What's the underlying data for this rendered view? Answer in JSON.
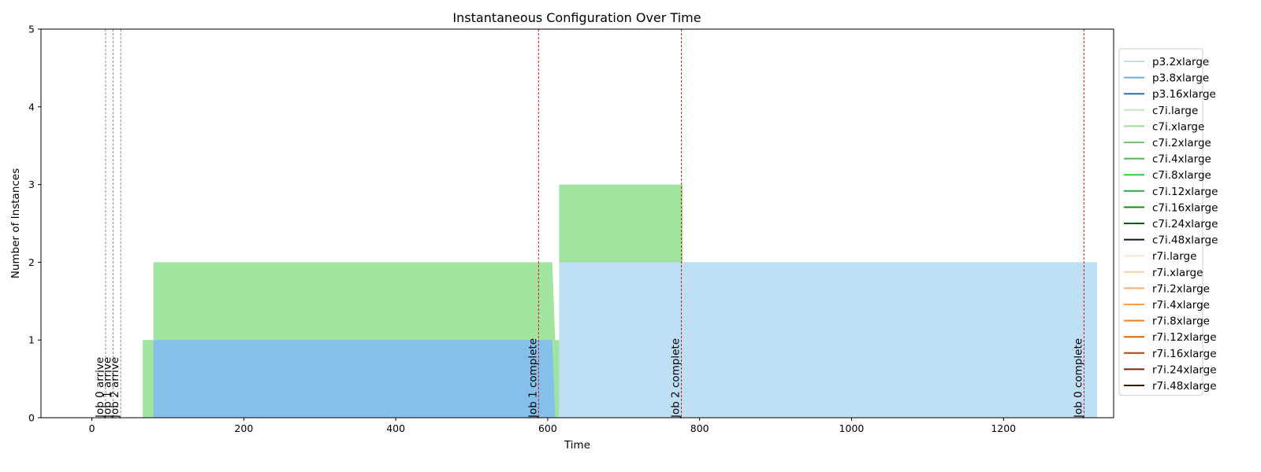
{
  "chart_data": {
    "type": "area",
    "title": "Instantaneous Configuration Over Time",
    "xlabel": "Time",
    "ylabel": "Number of Instances",
    "xlim": [
      -67,
      1345
    ],
    "ylim": [
      0,
      5
    ],
    "xticks": [
      0,
      200,
      400,
      600,
      800,
      1000,
      1200
    ],
    "yticks": [
      0,
      1,
      2,
      3,
      4,
      5
    ],
    "grid": false,
    "legend_position": "right, outside plot",
    "series": [
      {
        "name": "p3.2xlarge",
        "color": "#c6dbef",
        "fill": "#bfdff4",
        "points": [
          [
            615,
            0
          ],
          [
            615,
            2
          ],
          [
            1323,
            2
          ],
          [
            1323,
            0
          ]
        ]
      },
      {
        "name": "p3.8xlarge",
        "color": "#6baed6",
        "fill": "#85c0ea",
        "points": [
          [
            81,
            0
          ],
          [
            81,
            1
          ],
          [
            606,
            1
          ],
          [
            610,
            0
          ]
        ]
      },
      {
        "name": "p3.16xlarge",
        "color": "#2171b5",
        "points": []
      },
      {
        "name": "c7i.large",
        "color": "#c7e9c0",
        "points": []
      },
      {
        "name": "c7i.xlarge",
        "color": "#a1d99b",
        "fill": "#a0e4a0",
        "points": [
          [
            67,
            0
          ],
          [
            67,
            1
          ],
          [
            81,
            1
          ],
          [
            81,
            2
          ],
          [
            606,
            2
          ],
          [
            610,
            1
          ],
          [
            615,
            1
          ],
          [
            615,
            3
          ],
          [
            778,
            3
          ],
          [
            778,
            2
          ],
          [
            1323,
            2
          ],
          [
            1323,
            0
          ]
        ]
      },
      {
        "name": "c7i.2xlarge",
        "color": "#74c476",
        "points": []
      },
      {
        "name": "c7i.4xlarge",
        "color": "#4cbb4c",
        "points": []
      },
      {
        "name": "c7i.8xlarge",
        "color": "#2ecc40",
        "points": []
      },
      {
        "name": "c7i.12xlarge",
        "color": "#31a354",
        "points": []
      },
      {
        "name": "c7i.16xlarge",
        "color": "#1a8a1a",
        "points": []
      },
      {
        "name": "c7i.24xlarge",
        "color": "#0b5a0b",
        "points": []
      },
      {
        "name": "c7i.48xlarge",
        "color": "#111111",
        "points": []
      },
      {
        "name": "r7i.large",
        "color": "#fee6ce",
        "points": []
      },
      {
        "name": "r7i.xlarge",
        "color": "#fdd0a2",
        "points": []
      },
      {
        "name": "r7i.2xlarge",
        "color": "#fdae6b",
        "points": []
      },
      {
        "name": "r7i.4xlarge",
        "color": "#fd9b45",
        "points": []
      },
      {
        "name": "r7i.8xlarge",
        "color": "#f47e1d",
        "points": []
      },
      {
        "name": "r7i.12xlarge",
        "color": "#d9650c",
        "points": []
      },
      {
        "name": "r7i.16xlarge",
        "color": "#a9430c",
        "points": []
      },
      {
        "name": "r7i.24xlarge",
        "color": "#7a2306",
        "points": []
      },
      {
        "name": "r7i.48xlarge",
        "color": "#3d1a03",
        "points": []
      }
    ],
    "events": [
      {
        "x": 18,
        "label": "Job 0 arrive",
        "color": "#808080"
      },
      {
        "x": 28,
        "label": "Job 1 arrive",
        "color": "#808080"
      },
      {
        "x": 38,
        "label": "Job 2 arrive",
        "color": "#808080"
      },
      {
        "x": 588,
        "label": "Job 1 complete",
        "color": "#e00000"
      },
      {
        "x": 776,
        "label": "Job 2 complete",
        "color": "#e00000"
      },
      {
        "x": 1306,
        "label": "Job 0 complete",
        "color": "#e00000"
      }
    ]
  }
}
